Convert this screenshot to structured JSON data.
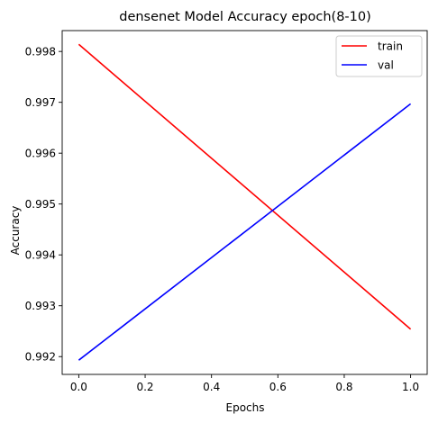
{
  "chart_data": {
    "type": "line",
    "title": "densenet Model Accuracy epoch(8-10)",
    "xlabel": "Epochs",
    "ylabel": "Accuracy",
    "xlim": [
      -0.05,
      1.05
    ],
    "ylim": [
      0.99165,
      0.99841
    ],
    "xticks": [
      0.0,
      0.2,
      0.4,
      0.6,
      0.8,
      1.0
    ],
    "xtick_labels": [
      "0.0",
      "0.2",
      "0.4",
      "0.6",
      "0.8",
      "1.0"
    ],
    "yticks": [
      0.992,
      0.993,
      0.994,
      0.995,
      0.996,
      0.997,
      0.998
    ],
    "ytick_labels": [
      "0.992",
      "0.993",
      "0.994",
      "0.995",
      "0.996",
      "0.997",
      "0.998"
    ],
    "legend_position": "top-right",
    "grid": false,
    "series": [
      {
        "name": "train",
        "color": "#ff0000",
        "x": [
          0,
          1
        ],
        "values": [
          0.99814,
          0.99254
        ]
      },
      {
        "name": "val",
        "color": "#0000ff",
        "x": [
          0,
          1
        ],
        "values": [
          0.99193,
          0.99697
        ]
      }
    ]
  }
}
